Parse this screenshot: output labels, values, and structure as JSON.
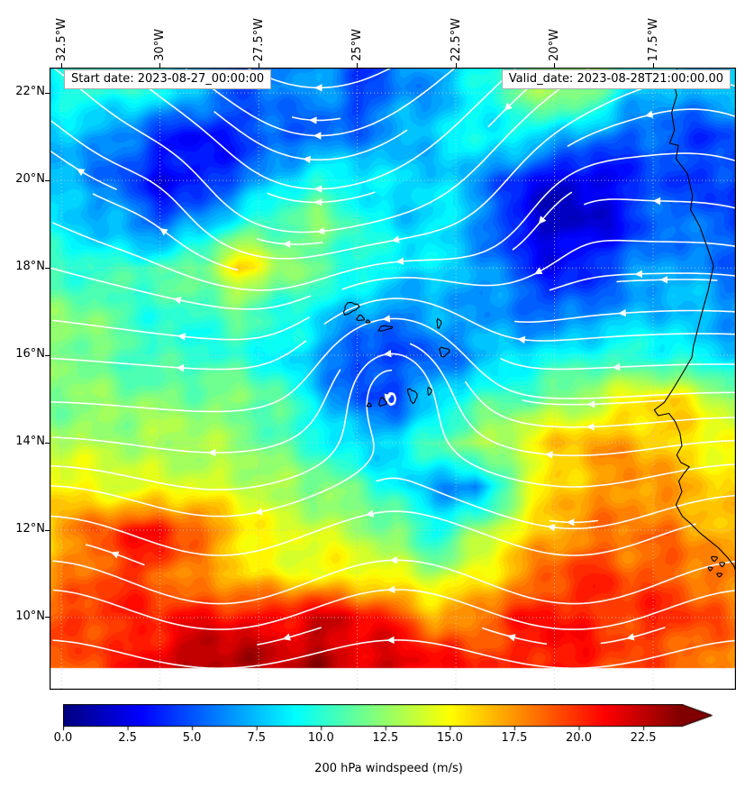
{
  "figure": {
    "background": "#ffffff",
    "annotations": {
      "start": "Start date: 2023-08-27_00:00:00",
      "valid": "Valid_date: 2023-08-28T21:00:00.00"
    }
  },
  "axes": {
    "lon_range": [
      -32.8,
      -15.4
    ],
    "lat_range": [
      8.35,
      22.58
    ],
    "data_lat_min": 8.85,
    "gridline_color": "#c9c9c9",
    "lon_ticks": [
      {
        "lon": -32.5,
        "label": "32.5°W"
      },
      {
        "lon": -30.0,
        "label": "30°W"
      },
      {
        "lon": -27.5,
        "label": "27.5°W"
      },
      {
        "lon": -25.0,
        "label": "25°W"
      },
      {
        "lon": -22.5,
        "label": "22.5°W"
      },
      {
        "lon": -20.0,
        "label": "20°W"
      },
      {
        "lon": -17.5,
        "label": "17.5°W"
      }
    ],
    "lat_ticks": [
      {
        "lat": 22,
        "label": "22°N"
      },
      {
        "lat": 20,
        "label": "20°N"
      },
      {
        "lat": 18,
        "label": "18°N"
      },
      {
        "lat": 16,
        "label": "16°N"
      },
      {
        "lat": 14,
        "label": "14°N"
      },
      {
        "lat": 12,
        "label": "12°N"
      },
      {
        "lat": 10,
        "label": "10°N"
      }
    ]
  },
  "colorbar": {
    "label": "200 hPa windspeed (m/s)",
    "colormap": "jet",
    "vmin": 0,
    "vmax": 24,
    "extend": "max",
    "ticks": [
      {
        "value": 0,
        "label": "0.0"
      },
      {
        "value": 2.5,
        "label": "2.5"
      },
      {
        "value": 5,
        "label": "5.0"
      },
      {
        "value": 7.5,
        "label": "7.5"
      },
      {
        "value": 10,
        "label": "10.0"
      },
      {
        "value": 12.5,
        "label": "12.5"
      },
      {
        "value": 15,
        "label": "15.0"
      },
      {
        "value": 17.5,
        "label": "17.5"
      },
      {
        "value": 20,
        "label": "20.0"
      },
      {
        "value": 22.5,
        "label": "22.5"
      }
    ]
  },
  "chart_data": {
    "type": "heatmap",
    "value_label": "200 hPa windspeed (m/s)",
    "units": "m/s",
    "lons": [
      -33,
      -32,
      -31,
      -30,
      -29,
      -28,
      -27,
      -26,
      -25,
      -24,
      -23,
      -22,
      -21,
      -20,
      -19,
      -18,
      -17,
      -16,
      -15
    ],
    "lats": [
      23,
      22,
      21,
      20,
      19,
      18,
      17,
      16,
      15,
      14,
      13,
      12,
      11,
      10,
      9
    ],
    "values": [
      [
        9,
        9,
        10,
        10,
        8,
        6,
        5,
        7,
        5,
        6,
        7,
        8,
        10,
        13,
        13,
        10,
        9,
        8,
        8
      ],
      [
        9,
        10,
        10,
        9,
        7,
        5,
        6,
        7,
        4,
        6,
        7,
        9,
        11,
        13,
        12,
        8,
        7,
        7,
        8
      ],
      [
        8,
        7,
        6,
        4,
        3,
        4,
        5,
        5,
        6,
        7,
        8,
        9,
        9,
        8,
        6,
        5,
        5,
        4,
        6
      ],
      [
        7,
        7,
        5,
        3,
        3,
        5,
        8,
        10,
        9,
        8,
        8,
        7,
        4,
        2,
        2,
        4,
        5,
        4,
        5
      ],
      [
        9,
        8,
        7,
        5,
        7,
        10,
        11,
        12,
        10,
        8,
        9,
        7,
        3,
        1.5,
        2,
        4,
        6,
        5,
        4
      ],
      [
        10,
        10,
        10,
        11,
        12,
        16,
        13,
        11,
        10,
        9,
        8,
        7,
        5,
        3,
        4,
        6,
        7,
        6,
        5
      ],
      [
        12,
        12,
        11,
        10,
        10,
        11,
        10,
        9,
        7,
        6,
        7,
        7,
        6,
        5,
        6,
        7,
        8,
        7,
        6
      ],
      [
        13,
        12,
        11,
        10,
        10,
        10,
        9,
        7,
        4,
        5,
        5,
        7,
        8,
        9,
        10,
        10,
        9,
        8,
        8
      ],
      [
        12,
        12,
        12,
        12,
        12,
        12,
        11,
        8,
        5,
        5,
        8,
        10,
        11,
        12,
        13,
        15,
        16,
        14,
        12
      ],
      [
        13,
        13,
        13,
        13,
        13,
        12,
        11,
        10,
        8,
        8,
        11,
        13,
        14,
        16,
        17,
        17,
        16,
        15,
        14
      ],
      [
        16,
        15,
        14,
        14,
        14,
        14,
        13,
        12,
        11,
        9,
        7,
        6,
        12,
        16,
        17,
        18,
        17,
        16,
        15
      ],
      [
        16,
        18,
        20,
        21,
        19,
        16,
        14,
        14,
        13,
        12,
        9,
        12,
        15,
        17,
        18,
        18,
        18,
        17,
        16
      ],
      [
        17,
        18,
        20,
        19,
        17,
        16,
        15,
        15,
        15,
        14,
        13,
        15,
        17,
        19,
        20,
        19,
        19,
        18,
        17
      ],
      [
        19,
        20,
        20,
        20,
        21,
        21,
        21,
        22,
        21,
        20,
        17,
        18,
        20,
        21,
        20,
        20,
        20,
        19,
        18
      ],
      [
        18,
        19,
        20,
        22,
        23,
        23,
        22,
        23,
        22,
        22,
        21,
        20,
        20,
        21,
        20,
        19,
        19,
        18,
        18
      ]
    ],
    "streamlines": {
      "color": "#ffffff",
      "width": 1.6,
      "flow": {
        "base_u": -1.0,
        "waves": [
          {
            "amp": 0.9,
            "k": 0.33,
            "zero": -35.5,
            "lat0": 21.5,
            "sigma": 3.4
          },
          {
            "amp": 0.35,
            "k": 0.7,
            "zero": -24.0,
            "lat0": 11.0,
            "sigma": 2.8
          }
        ],
        "vortices": [
          {
            "lon": -24.15,
            "lat": 15.8,
            "k": 1.5,
            "s": 1.9,
            "dir": 1
          },
          {
            "lon": -29.8,
            "lat": 20.1,
            "k": 0.5,
            "s": 1.6,
            "dir": 1
          },
          {
            "lon": -19.6,
            "lat": 19.7,
            "k": 0.55,
            "s": 1.7,
            "dir": 1
          }
        ]
      }
    },
    "coastline": {
      "color": "#000000",
      "paths": [
        [
          [
            -16.85,
            22.65
          ],
          [
            -17.0,
            22.3
          ],
          [
            -16.9,
            21.95
          ],
          [
            -17.03,
            21.55
          ],
          [
            -16.96,
            21.15
          ],
          [
            -17.08,
            20.85
          ],
          [
            -16.86,
            20.8
          ],
          [
            -16.92,
            20.5
          ],
          [
            -16.63,
            20.15
          ],
          [
            -16.5,
            19.65
          ],
          [
            -16.55,
            19.33
          ],
          [
            -16.32,
            18.95
          ],
          [
            -16.12,
            18.45
          ],
          [
            -15.97,
            18.05
          ],
          [
            -16.1,
            17.5
          ],
          [
            -16.3,
            16.85
          ],
          [
            -16.48,
            16.2
          ],
          [
            -16.52,
            15.95
          ],
          [
            -16.78,
            15.55
          ],
          [
            -17.0,
            15.22
          ],
          [
            -17.22,
            14.92
          ],
          [
            -17.47,
            14.75
          ],
          [
            -17.37,
            14.62
          ],
          [
            -17.1,
            14.67
          ],
          [
            -16.94,
            14.48
          ],
          [
            -16.82,
            14.22
          ],
          [
            -16.77,
            13.93
          ],
          [
            -16.9,
            13.72
          ],
          [
            -16.8,
            13.55
          ],
          [
            -16.58,
            13.45
          ],
          [
            -16.72,
            13.3
          ],
          [
            -16.85,
            13.12
          ],
          [
            -16.77,
            12.88
          ],
          [
            -16.92,
            12.58
          ],
          [
            -16.76,
            12.32
          ],
          [
            -16.55,
            12.15
          ],
          [
            -16.33,
            11.95
          ],
          [
            -16.1,
            11.78
          ],
          [
            -15.85,
            11.6
          ],
          [
            -15.62,
            11.38
          ],
          [
            -15.45,
            11.18
          ],
          [
            -15.4,
            11.05
          ]
        ]
      ],
      "islands": [
        {
          "lon": -25.17,
          "lat": 17.08,
          "rx": 0.2,
          "ry": 0.11,
          "rot": -30
        },
        {
          "lon": -24.92,
          "lat": 16.85,
          "rx": 0.09,
          "ry": 0.06,
          "rot": 0
        },
        {
          "lon": -24.73,
          "lat": 16.77,
          "rx": 0.05,
          "ry": 0.03,
          "rot": 0
        },
        {
          "lon": -24.3,
          "lat": 16.62,
          "rx": 0.17,
          "ry": 0.05,
          "rot": -10
        },
        {
          "lon": -22.93,
          "lat": 16.73,
          "rx": 0.05,
          "ry": 0.1,
          "rot": 0
        },
        {
          "lon": -22.8,
          "lat": 16.08,
          "rx": 0.12,
          "ry": 0.1,
          "rot": 0
        },
        {
          "lon": -23.17,
          "lat": 15.18,
          "rx": 0.05,
          "ry": 0.08,
          "rot": 0
        },
        {
          "lon": -23.6,
          "lat": 15.08,
          "rx": 0.1,
          "ry": 0.16,
          "rot": -20
        },
        {
          "lon": -24.36,
          "lat": 14.93,
          "rx": 0.09,
          "ry": 0.09,
          "rot": 0
        },
        {
          "lon": -24.7,
          "lat": 14.86,
          "rx": 0.05,
          "ry": 0.04,
          "rot": 0
        },
        {
          "lon": -15.95,
          "lat": 11.35,
          "rx": 0.07,
          "ry": 0.05,
          "rot": 0
        },
        {
          "lon": -15.75,
          "lat": 11.22,
          "rx": 0.06,
          "ry": 0.045,
          "rot": 0
        },
        {
          "lon": -16.05,
          "lat": 11.12,
          "rx": 0.05,
          "ry": 0.04,
          "rot": 0
        },
        {
          "lon": -15.82,
          "lat": 10.98,
          "rx": 0.06,
          "ry": 0.04,
          "rot": 0
        }
      ]
    }
  }
}
